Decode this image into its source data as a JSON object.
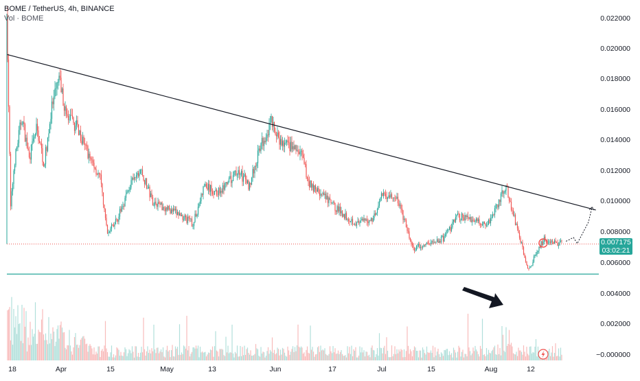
{
  "header": {
    "symbol_line": "BOME / TetherUS, 4h, BINANCE",
    "volume_line": "Vol · BOME"
  },
  "price_tag": {
    "price": "0.007175",
    "countdown": "03:02:21"
  },
  "colors": {
    "up": "#26a69a",
    "down": "#ef5350",
    "trendline": "#131722",
    "support": "#26a69a",
    "current_price_line": "#ef5350",
    "axis_text": "#131722"
  },
  "chart_data": [
    {
      "type": "candlestick",
      "title": "BOME / TetherUS, 4h, BINANCE",
      "y_axis_ticks": [
        "0.022000",
        "0.020000",
        "0.018000",
        "0.016000",
        "0.014000",
        "0.012000",
        "0.010000",
        "0.008000",
        "0.006000",
        "0.004000",
        "0.002000",
        "−0.000000"
      ],
      "x_axis_ticks": [
        "18",
        "Apr",
        "15",
        "May",
        "13",
        "Jun",
        "17",
        "Jul",
        "15",
        "Aug",
        "12"
      ],
      "price_path": [
        [
          "2024-03-18",
          0.0222
        ],
        [
          "2024-03-19",
          0.0095
        ],
        [
          "2024-03-20",
          0.0125
        ],
        [
          "2024-03-22",
          0.0155
        ],
        [
          "2024-03-24",
          0.0128
        ],
        [
          "2024-03-26",
          0.0148
        ],
        [
          "2024-03-28",
          0.0124
        ],
        [
          "2024-03-30",
          0.016
        ],
        [
          "2024-04-01",
          0.018
        ],
        [
          "2024-04-03",
          0.0155
        ],
        [
          "2024-04-06",
          0.0148
        ],
        [
          "2024-04-09",
          0.013
        ],
        [
          "2024-04-12",
          0.0115
        ],
        [
          "2024-04-14",
          0.0078
        ],
        [
          "2024-04-17",
          0.009
        ],
        [
          "2024-04-20",
          0.011
        ],
        [
          "2024-04-23",
          0.012
        ],
        [
          "2024-04-26",
          0.01
        ],
        [
          "2024-04-30",
          0.0095
        ],
        [
          "2024-05-04",
          0.009
        ],
        [
          "2024-05-07",
          0.0085
        ],
        [
          "2024-05-10",
          0.011
        ],
        [
          "2024-05-13",
          0.0105
        ],
        [
          "2024-05-16",
          0.011
        ],
        [
          "2024-05-19",
          0.012
        ],
        [
          "2024-05-22",
          0.011
        ],
        [
          "2024-05-25",
          0.0135
        ],
        [
          "2024-05-28",
          0.0152
        ],
        [
          "2024-05-30",
          0.0138
        ],
        [
          "2024-06-02",
          0.0136
        ],
        [
          "2024-06-05",
          0.013
        ],
        [
          "2024-06-07",
          0.0112
        ],
        [
          "2024-06-10",
          0.0105
        ],
        [
          "2024-06-14",
          0.0096
        ],
        [
          "2024-06-17",
          0.009
        ],
        [
          "2024-06-20",
          0.0085
        ],
        [
          "2024-06-24",
          0.0088
        ],
        [
          "2024-06-27",
          0.0105
        ],
        [
          "2024-07-01",
          0.01
        ],
        [
          "2024-07-05",
          0.0068
        ],
        [
          "2024-07-09",
          0.0072
        ],
        [
          "2024-07-13",
          0.0075
        ],
        [
          "2024-07-17",
          0.009
        ],
        [
          "2024-07-21",
          0.0088
        ],
        [
          "2024-07-25",
          0.0085
        ],
        [
          "2024-07-28",
          0.01
        ],
        [
          "2024-07-30",
          0.011
        ],
        [
          "2024-08-02",
          0.008
        ],
        [
          "2024-08-05",
          0.0055
        ],
        [
          "2024-08-07",
          0.0065
        ],
        [
          "2024-08-09",
          0.0075
        ],
        [
          "2024-08-12",
          0.0073
        ],
        [
          "2024-08-14",
          0.0072
        ]
      ],
      "trendline": [
        [
          "2024-03-18",
          0.0196
        ],
        [
          "2024-08-23",
          0.0094
        ]
      ],
      "support_level": 0.0052,
      "current_price": 0.007175,
      "projection": [
        [
          "2024-08-15",
          0.00735
        ],
        [
          "2024-08-17",
          0.0076
        ],
        [
          "2024-08-18",
          0.0072
        ],
        [
          "2024-08-21",
          0.0086
        ],
        [
          "2024-08-22",
          0.0096
        ]
      ],
      "legend_placement": "top-left",
      "grid": false
    },
    {
      "type": "bar",
      "title": "Vol · BOME",
      "series_note": "volume histogram beneath price"
    }
  ]
}
